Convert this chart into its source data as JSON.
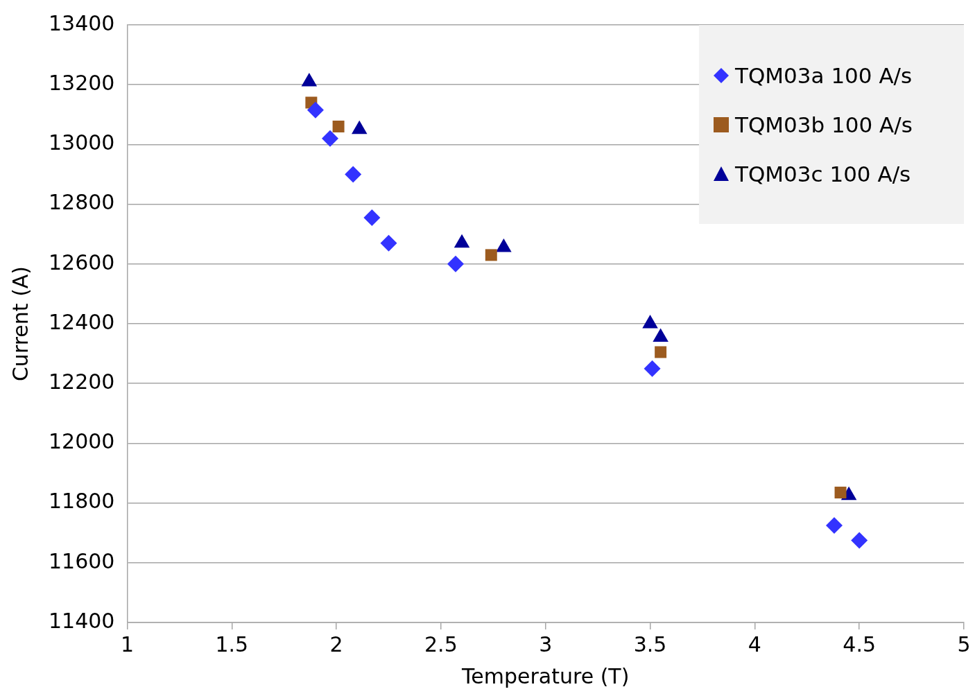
{
  "chart_data": {
    "type": "scatter",
    "xlabel": "Temperature (T)",
    "ylabel": "Current (A)",
    "xlim": [
      1,
      5
    ],
    "xticks": [
      1,
      1.5,
      2,
      2.5,
      3,
      3.5,
      4,
      4.5,
      5
    ],
    "ylim": [
      11400,
      13400
    ],
    "yticks": [
      11400,
      11600,
      11800,
      12000,
      12200,
      12400,
      12600,
      12800,
      13000,
      13200,
      13400
    ],
    "grid": "y",
    "legend": "top right",
    "series": [
      {
        "name": "TQM03a 100 A/s",
        "color": "#3333ff",
        "marker": "diamond",
        "x": [
          1.9,
          1.97,
          2.08,
          2.17,
          2.25,
          2.57,
          3.51,
          4.38,
          4.5
        ],
        "values": [
          13115,
          13020,
          12900,
          12755,
          12670,
          12600,
          12250,
          11725,
          11675
        ]
      },
      {
        "name": "TQM03b 100 A/s",
        "color": "#9c5b1f",
        "marker": "square",
        "x": [
          1.88,
          2.01,
          2.74,
          3.55,
          4.41
        ],
        "values": [
          13140,
          13060,
          12630,
          12305,
          11835
        ]
      },
      {
        "name": "TQM03c 100 A/s",
        "color": "#000099",
        "marker": "triangle",
        "x": [
          1.87,
          2.11,
          2.6,
          2.8,
          3.5,
          3.55,
          4.45
        ],
        "values": [
          13210,
          13050,
          12670,
          12655,
          12400,
          12355,
          11825
        ]
      }
    ]
  }
}
